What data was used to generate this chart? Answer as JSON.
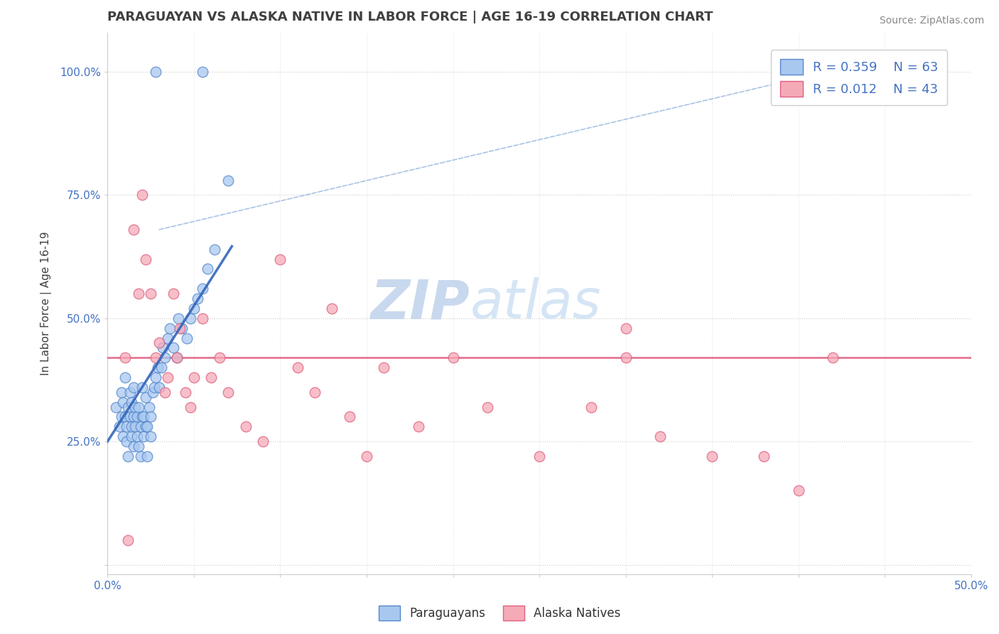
{
  "title": "PARAGUAYAN VS ALASKA NATIVE IN LABOR FORCE | AGE 16-19 CORRELATION CHART",
  "source": "Source: ZipAtlas.com",
  "ylabel": "In Labor Force | Age 16-19",
  "xlim": [
    0.0,
    0.5
  ],
  "ylim": [
    -0.02,
    1.08
  ],
  "xtick_labels": [
    "0.0%",
    "",
    "",
    "",
    "",
    "",
    "",
    "",
    "",
    "",
    "50.0%"
  ],
  "ytick_labels": [
    "",
    "25.0%",
    "50.0%",
    "75.0%",
    "100.0%"
  ],
  "yticks": [
    0.0,
    0.25,
    0.5,
    0.75,
    1.0
  ],
  "blue_color": "#a8c8f0",
  "pink_color": "#f5aab8",
  "blue_edge_color": "#5588cc",
  "pink_edge_color": "#e06080",
  "blue_line_color": "#3366bb",
  "pink_line_color": "#e06080",
  "watermark_zip": "ZIP",
  "watermark_atlas": "atlas",
  "legend_r_blue": "R = 0.359",
  "legend_n_blue": "N = 63",
  "legend_r_pink": "R = 0.012",
  "legend_n_pink": "N = 43",
  "paraguayans_label": "Paraguayans",
  "alaska_label": "Alaska Natives",
  "blue_scatter_x": [
    0.005,
    0.007,
    0.008,
    0.008,
    0.009,
    0.009,
    0.01,
    0.01,
    0.011,
    0.011,
    0.012,
    0.012,
    0.013,
    0.013,
    0.014,
    0.014,
    0.014,
    0.015,
    0.015,
    0.015,
    0.016,
    0.016,
    0.017,
    0.017,
    0.018,
    0.018,
    0.019,
    0.019,
    0.02,
    0.02,
    0.021,
    0.021,
    0.022,
    0.022,
    0.023,
    0.023,
    0.024,
    0.025,
    0.025,
    0.026,
    0.027,
    0.028,
    0.029,
    0.03,
    0.031,
    0.032,
    0.033,
    0.035,
    0.036,
    0.038,
    0.04,
    0.041,
    0.043,
    0.046,
    0.048,
    0.05,
    0.052,
    0.055,
    0.058,
    0.062,
    0.028,
    0.055,
    0.07
  ],
  "blue_scatter_y": [
    0.32,
    0.28,
    0.35,
    0.3,
    0.26,
    0.33,
    0.38,
    0.3,
    0.25,
    0.28,
    0.32,
    0.22,
    0.3,
    0.35,
    0.26,
    0.28,
    0.33,
    0.24,
    0.3,
    0.36,
    0.28,
    0.32,
    0.26,
    0.3,
    0.24,
    0.32,
    0.28,
    0.22,
    0.3,
    0.36,
    0.26,
    0.3,
    0.28,
    0.34,
    0.22,
    0.28,
    0.32,
    0.26,
    0.3,
    0.35,
    0.36,
    0.38,
    0.4,
    0.36,
    0.4,
    0.44,
    0.42,
    0.46,
    0.48,
    0.44,
    0.42,
    0.5,
    0.48,
    0.46,
    0.5,
    0.52,
    0.54,
    0.56,
    0.6,
    0.64,
    1.0,
    1.0,
    0.78
  ],
  "pink_scatter_x": [
    0.01,
    0.012,
    0.015,
    0.018,
    0.02,
    0.022,
    0.025,
    0.028,
    0.03,
    0.033,
    0.035,
    0.038,
    0.04,
    0.042,
    0.045,
    0.048,
    0.055,
    0.06,
    0.065,
    0.07,
    0.08,
    0.09,
    0.1,
    0.11,
    0.12,
    0.13,
    0.14,
    0.15,
    0.16,
    0.18,
    0.2,
    0.22,
    0.25,
    0.28,
    0.3,
    0.32,
    0.35,
    0.38,
    0.4,
    0.42,
    0.05,
    0.3,
    0.44
  ],
  "pink_scatter_y": [
    0.42,
    0.05,
    0.68,
    0.55,
    0.75,
    0.62,
    0.55,
    0.42,
    0.45,
    0.35,
    0.38,
    0.55,
    0.42,
    0.48,
    0.35,
    0.32,
    0.5,
    0.38,
    0.42,
    0.35,
    0.28,
    0.25,
    0.62,
    0.4,
    0.35,
    0.52,
    0.3,
    0.22,
    0.4,
    0.28,
    0.42,
    0.32,
    0.22,
    0.32,
    0.42,
    0.26,
    0.22,
    0.22,
    0.15,
    0.42,
    0.38,
    0.48,
    1.0
  ],
  "blue_trend_x": [
    0.0,
    0.08
  ],
  "blue_trend_y_start": 0.25,
  "blue_trend_slope": 5.5,
  "pink_trend_y": 0.42,
  "background_color": "#ffffff",
  "title_color": "#404040",
  "axis_color": "#cccccc",
  "tick_color": "#4472c4",
  "watermark_color_zip": "#c8d8ee",
  "watermark_color_atlas": "#d5e5f5"
}
